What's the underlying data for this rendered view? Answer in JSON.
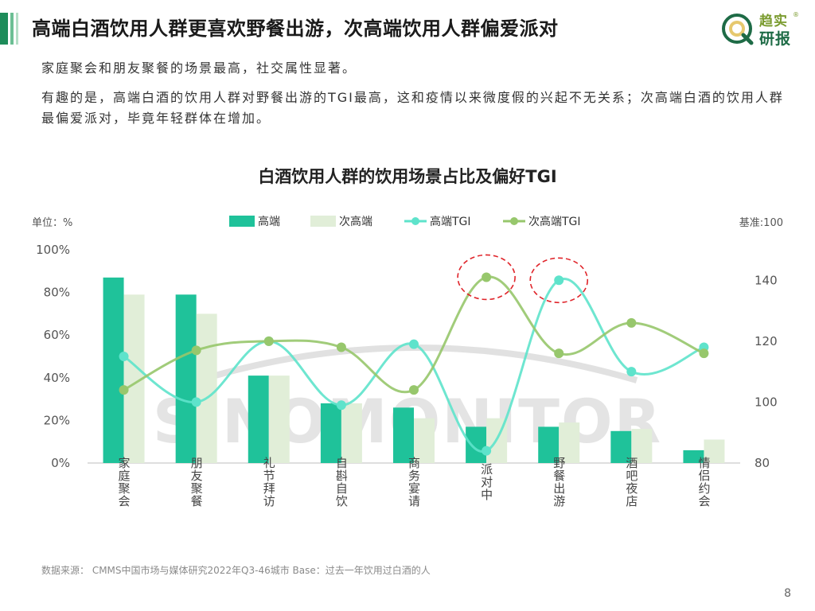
{
  "header": {
    "title": "高端白酒饮用人群更喜欢野餐出游，次高端饮用人群偏爱派对",
    "logo_top": "趋实",
    "logo_bottom": "研报",
    "logo_reg": "®"
  },
  "subtitle": "家庭聚会和朋友聚餐的场景最高，社交属性显著。",
  "description": "有趣的是，高端白酒的饮用人群对野餐出游的TGI最高，这和疫情以来微度假的兴起不无关系；次高端白酒的饮用人群最偏爱派对，毕竟年轻群体在增加。",
  "watermark": "SINOMONITOR",
  "footer": {
    "source": "数据来源： CMMS中国市场与媒体研究2022年Q3-46城市 Base：过去一年饮用过白酒的人",
    "page_number": "8"
  },
  "colors": {
    "high_bar": "#1fc29a",
    "sub_bar": "#e1eed8",
    "high_tgi": "#5ee3cb",
    "sub_tgi": "#97c76c",
    "highlight": "#e0242a",
    "axis": "#bdbdbd"
  },
  "chart_data": {
    "type": "bar",
    "title": "白酒饮用人群的饮用场景占比及偏好TGI",
    "ylabel": "单位：%",
    "y2label": "基准:100",
    "ylim": [
      0,
      100
    ],
    "y2lim": [
      80,
      150
    ],
    "yticks": [
      "0%",
      "20%",
      "40%",
      "60%",
      "80%",
      "100%"
    ],
    "y2ticks": [
      80,
      100,
      120,
      140
    ],
    "legend_position": "top",
    "grid": false,
    "categories": [
      "家庭聚会",
      "朋友聚餐",
      "礼节拜访",
      "自斟自饮",
      "商务宴请",
      "派对中",
      "野餐出游",
      "酒吧夜店",
      "情侣约会"
    ],
    "series": [
      {
        "name": "高端",
        "kind": "bar",
        "axis": "left",
        "values": [
          87,
          79,
          41,
          28,
          26,
          17,
          17,
          15,
          6
        ]
      },
      {
        "name": "次高端",
        "kind": "bar",
        "axis": "left",
        "values": [
          79,
          70,
          41,
          28,
          21,
          21,
          19,
          16,
          11
        ]
      },
      {
        "name": "高端TGI",
        "kind": "line",
        "axis": "right",
        "values": [
          115,
          100,
          120,
          99,
          119,
          84,
          140,
          110,
          118
        ]
      },
      {
        "name": "次高端TGI",
        "kind": "line",
        "axis": "right",
        "values": [
          104,
          117,
          120,
          118,
          104,
          141,
          116,
          126,
          116
        ]
      }
    ],
    "highlighted_points": [
      {
        "series": "次高端TGI",
        "category": "派对中"
      },
      {
        "series": "高端TGI",
        "category": "野餐出游"
      }
    ]
  }
}
